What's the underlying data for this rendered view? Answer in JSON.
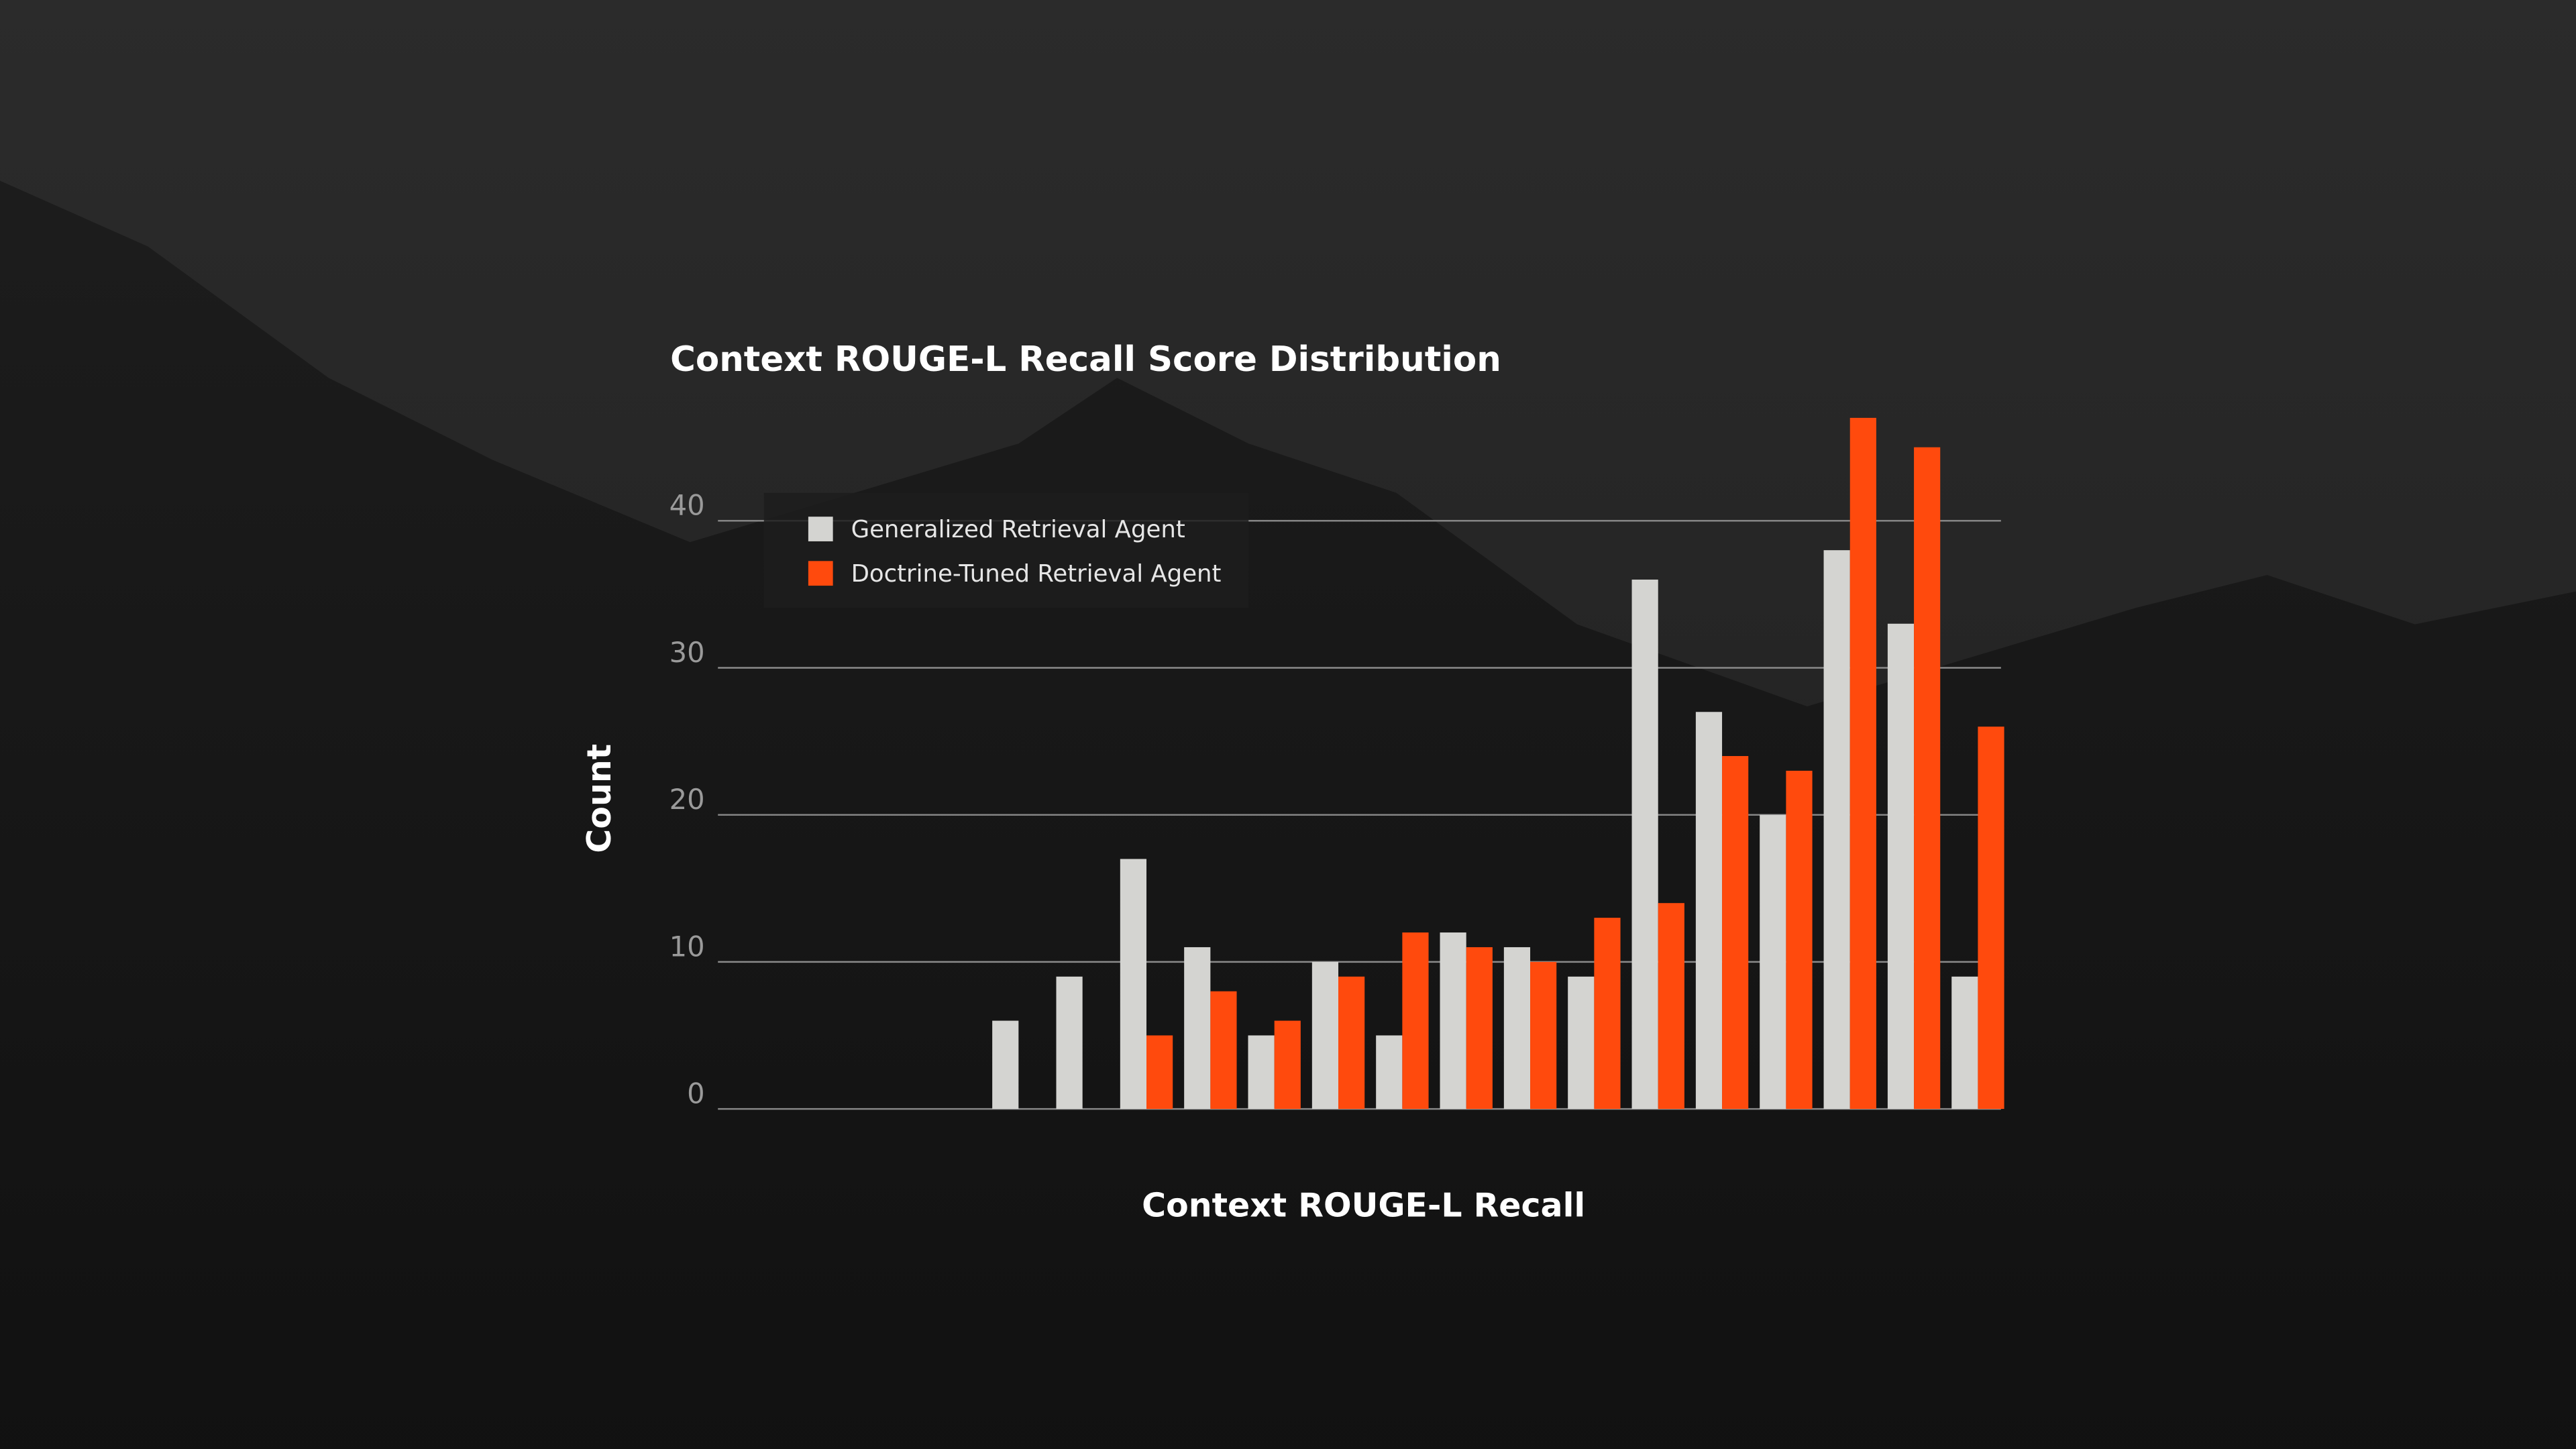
{
  "chart_data": {
    "type": "bar",
    "title": "Context ROUGE-L Recall Score Distribution",
    "x_label": "Context ROUGE-L Recall",
    "y_label": "Count",
    "categories": [
      null,
      null,
      null,
      null,
      null,
      null,
      null,
      null,
      null,
      null,
      null,
      null,
      null,
      null,
      null,
      null,
      null,
      null,
      null,
      null
    ],
    "series": [
      {
        "name": "Generalized Retrieval Agent",
        "color": "#d4d4d1",
        "values": [
          0,
          0,
          0,
          0,
          6,
          9,
          17,
          11,
          5,
          10,
          5,
          12,
          11,
          9,
          36,
          27,
          20,
          38,
          33,
          9
        ]
      },
      {
        "name": "Doctrine-Tuned Retrieval Agent",
        "color": "#ff4a0d",
        "values": [
          0,
          0,
          0,
          0,
          0,
          0,
          5,
          8,
          6,
          9,
          12,
          11,
          10,
          13,
          14,
          24,
          23,
          47,
          45,
          26
        ]
      }
    ],
    "ylim": [
      0,
      48
    ],
    "yticks": [
      0,
      10,
      20,
      30,
      40
    ],
    "grid": true,
    "legend": "upper left"
  }
}
